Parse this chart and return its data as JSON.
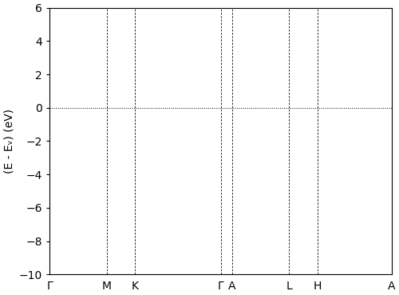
{
  "kpoint_labels": [
    "Γ",
    "M",
    "K",
    "Γ",
    "A",
    "L",
    "H",
    "A"
  ],
  "kpoint_positions": [
    0.0,
    0.167,
    0.25,
    0.5,
    0.533,
    0.7,
    0.783,
    1.0
  ],
  "ylim": [
    -10,
    6
  ],
  "yticks": [
    -10,
    -8,
    -6,
    -4,
    -2,
    0,
    2,
    4,
    6
  ],
  "ylabel": "(E - Eᵥ) (eV)",
  "line_color": "#3366bb",
  "line_width": 0.65,
  "background_color": "#ffffff",
  "n_kpoints": 400
}
